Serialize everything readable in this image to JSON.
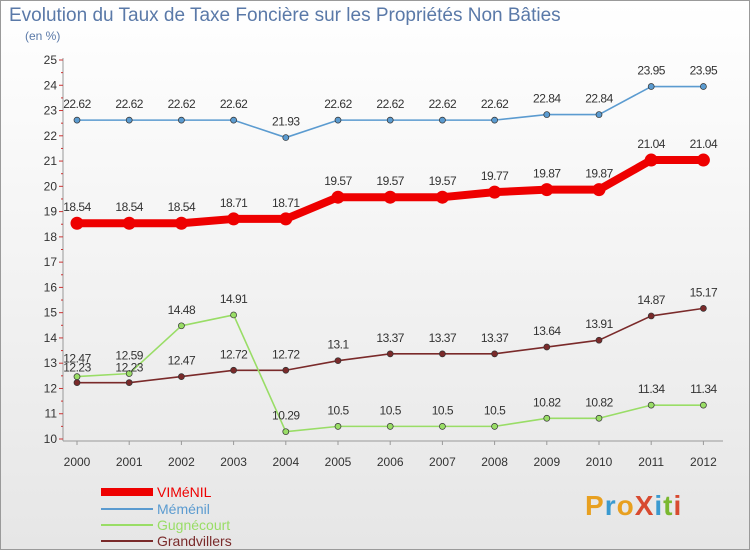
{
  "title": "Evolution du Taux de Taxe Foncière sur les Propriétés Non Bâties",
  "unit_label": "(en %)",
  "logo": {
    "text": "ProXiti",
    "colors": [
      "#e8a020",
      "#3a9ad0",
      "#e8a020",
      "#d84a30",
      "#3a9ad0",
      "#7ab830",
      "#d84a30"
    ]
  },
  "chart_data": {
    "type": "line",
    "categories": [
      "2000",
      "2001",
      "2002",
      "2003",
      "2004",
      "2005",
      "2006",
      "2007",
      "2008",
      "2009",
      "2010",
      "2011",
      "2012"
    ],
    "ylim": [
      10,
      25
    ],
    "yticks": [
      "10",
      "11",
      "12",
      "13",
      "14",
      "15",
      "16",
      "17",
      "18",
      "19",
      "20",
      "21",
      "22",
      "23",
      "24",
      "25"
    ],
    "grid": false,
    "legend_position": "bottom-left",
    "series": [
      {
        "name": "VIMéNIL",
        "color": "#ee0000",
        "values": [
          18.54,
          18.54,
          18.54,
          18.71,
          18.71,
          19.57,
          19.57,
          19.57,
          19.77,
          19.87,
          19.87,
          21.04,
          21.04
        ],
        "labels": [
          "18.54",
          "18.54",
          "18.54",
          "18.71",
          "18.71",
          "19.57",
          "19.57",
          "19.57",
          "19.77",
          "19.87",
          "19.87",
          "21.04",
          "21.04"
        ]
      },
      {
        "name": "Méménil",
        "color": "#5b9bd0",
        "values": [
          22.62,
          22.62,
          22.62,
          22.62,
          21.93,
          22.62,
          22.62,
          22.62,
          22.62,
          22.84,
          22.84,
          23.95,
          23.95
        ],
        "labels": [
          "22.62",
          "22.62",
          "22.62",
          "22.62",
          "21.93",
          "22.62",
          "22.62",
          "22.62",
          "22.62",
          "22.84",
          "22.84",
          "23.95",
          "23.95"
        ]
      },
      {
        "name": "Gugnécourt",
        "color": "#99dd66",
        "values": [
          12.47,
          12.59,
          14.48,
          14.91,
          10.29,
          10.5,
          10.5,
          10.5,
          10.5,
          10.82,
          10.82,
          11.34,
          11.34
        ],
        "labels": [
          "12.47",
          "12.59",
          "14.48",
          "14.91",
          "10.29",
          "10.5",
          "10.5",
          "10.5",
          "10.5",
          "10.82",
          "10.82",
          "11.34",
          "11.34"
        ]
      },
      {
        "name": "Grandvillers",
        "color": "#7a2a2a",
        "values": [
          12.23,
          12.23,
          12.47,
          12.72,
          12.72,
          13.1,
          13.37,
          13.37,
          13.37,
          13.64,
          13.91,
          14.87,
          15.17
        ],
        "labels": [
          "12.23",
          "12.23",
          "12.47",
          "12.72",
          "12.72",
          "13.1",
          "13.37",
          "13.37",
          "13.37",
          "13.64",
          "13.91",
          "14.87",
          "15.17"
        ]
      }
    ]
  }
}
